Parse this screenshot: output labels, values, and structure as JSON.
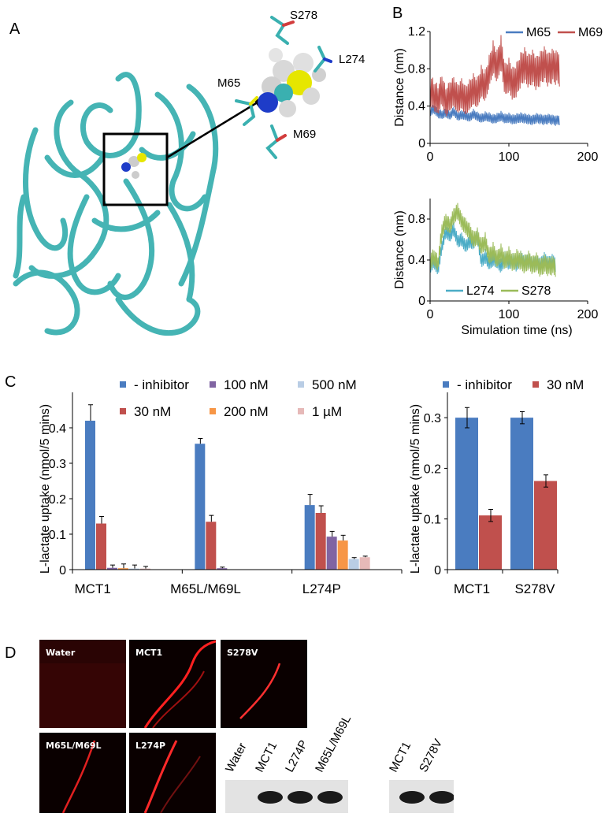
{
  "panels": {
    "a": "A",
    "b": "B",
    "c": "C",
    "d": "D"
  },
  "structure": {
    "residues": [
      "S278",
      "L274",
      "M65",
      "M69"
    ]
  },
  "colors": {
    "blue": "#4a7cc0",
    "red": "#c0504d",
    "purple": "#8064a2",
    "orange": "#f79646",
    "lightblue": "#b9cde5",
    "pink": "#e6b9b8",
    "cyan": "#4bacc6",
    "green": "#9bbb59",
    "protein": "#45b4b4"
  },
  "chart_data": [
    {
      "id": "B-top",
      "type": "line",
      "title": "",
      "xlabel": "",
      "ylabel": "Distance (nm)",
      "xlim": [
        0,
        200
      ],
      "ylim": [
        0,
        1.2
      ],
      "xticks": [
        "0",
        "100",
        "200"
      ],
      "yticks": [
        "0",
        "0.4",
        "0.8",
        "1.2"
      ],
      "legend_position": "top",
      "series": [
        {
          "name": "M65",
          "color": "#4a7cc0",
          "x": [
            0,
            5,
            10,
            15,
            20,
            25,
            30,
            35,
            40,
            45,
            50,
            55,
            60,
            65,
            70,
            75,
            80,
            85,
            90,
            95,
            100,
            105,
            110,
            115,
            120,
            125,
            130,
            135,
            140,
            145,
            150,
            155,
            160,
            165
          ],
          "y": [
            0.35,
            0.38,
            0.33,
            0.32,
            0.34,
            0.31,
            0.36,
            0.3,
            0.32,
            0.31,
            0.29,
            0.33,
            0.3,
            0.28,
            0.3,
            0.29,
            0.27,
            0.28,
            0.3,
            0.27,
            0.28,
            0.26,
            0.27,
            0.28,
            0.27,
            0.26,
            0.25,
            0.27,
            0.26,
            0.25,
            0.26,
            0.25,
            0.24,
            0.25
          ]
        },
        {
          "name": "M69",
          "color": "#c0504d",
          "x": [
            0,
            5,
            10,
            15,
            20,
            25,
            30,
            35,
            40,
            45,
            50,
            55,
            60,
            65,
            70,
            75,
            80,
            85,
            90,
            95,
            100,
            105,
            110,
            115,
            120,
            125,
            130,
            135,
            140,
            145,
            150,
            155,
            160,
            165
          ],
          "y": [
            0.6,
            0.55,
            0.5,
            0.62,
            0.48,
            0.55,
            0.6,
            0.52,
            0.58,
            0.5,
            0.56,
            0.62,
            0.58,
            0.7,
            0.65,
            0.8,
            0.95,
            0.85,
            1.0,
            0.7,
            0.75,
            0.65,
            0.7,
            0.8,
            0.85,
            0.78,
            0.82,
            0.75,
            0.8,
            0.85,
            0.78,
            0.82,
            0.8,
            0.78
          ]
        }
      ]
    },
    {
      "id": "B-bottom",
      "type": "line",
      "title": "",
      "xlabel": "Simulation time (ns)",
      "ylabel": "Distance (nm)",
      "xlim": [
        0,
        200
      ],
      "ylim": [
        0,
        1.0
      ],
      "xticks": [
        "0",
        "100",
        "200"
      ],
      "yticks": [
        "0",
        "0.4",
        "0.8"
      ],
      "legend_position": "bottom",
      "series": [
        {
          "name": "L274",
          "color": "#4bacc6",
          "x": [
            0,
            5,
            10,
            15,
            20,
            25,
            30,
            35,
            40,
            45,
            50,
            55,
            60,
            65,
            70,
            75,
            80,
            85,
            90,
            95,
            100,
            105,
            110,
            115,
            120,
            125,
            130,
            135,
            140,
            145,
            150,
            155,
            160
          ],
          "y": [
            0.35,
            0.4,
            0.32,
            0.55,
            0.7,
            0.65,
            0.72,
            0.6,
            0.62,
            0.55,
            0.6,
            0.58,
            0.65,
            0.4,
            0.45,
            0.38,
            0.42,
            0.4,
            0.35,
            0.42,
            0.38,
            0.4,
            0.36,
            0.42,
            0.38,
            0.4,
            0.36,
            0.38,
            0.35,
            0.4,
            0.36,
            0.38,
            0.35
          ]
        },
        {
          "name": "S278",
          "color": "#9bbb59",
          "x": [
            0,
            5,
            10,
            15,
            20,
            25,
            30,
            35,
            40,
            45,
            50,
            55,
            60,
            65,
            70,
            75,
            80,
            85,
            90,
            95,
            100,
            105,
            110,
            115,
            120,
            125,
            130,
            135,
            140,
            145,
            150,
            155,
            160
          ],
          "y": [
            0.4,
            0.45,
            0.38,
            0.7,
            0.8,
            0.75,
            0.85,
            0.9,
            0.8,
            0.75,
            0.7,
            0.62,
            0.65,
            0.55,
            0.6,
            0.45,
            0.5,
            0.42,
            0.48,
            0.4,
            0.45,
            0.38,
            0.42,
            0.4,
            0.36,
            0.4,
            0.35,
            0.38,
            0.32,
            0.36,
            0.33,
            0.34,
            0.32
          ]
        }
      ]
    },
    {
      "id": "C-left",
      "type": "bar",
      "title": "",
      "xlabel": "",
      "ylabel": "L-lactate uptake (nmol/5 mins)",
      "ylim": [
        0,
        0.5
      ],
      "yticks": [
        "0",
        "0.1",
        "0.2",
        "0.3",
        "0.4"
      ],
      "categories": [
        "MCT1",
        "M65L/M69L",
        "L274P"
      ],
      "legend_position": "top",
      "series": [
        {
          "name": "- inhibitor",
          "color": "#4a7cc0",
          "values": [
            0.42,
            0.355,
            0.182
          ],
          "errors": [
            0.045,
            0.015,
            0.03
          ]
        },
        {
          "name": "30 nM",
          "color": "#c0504d",
          "values": [
            0.13,
            0.135,
            0.16
          ],
          "errors": [
            0.02,
            0.018,
            0.02
          ]
        },
        {
          "name": "100 nM",
          "color": "#8064a2",
          "values": [
            0.005,
            0.004,
            0.093
          ],
          "errors": [
            0.008,
            0.003,
            0.015
          ]
        },
        {
          "name": "200 nM",
          "color": "#f79646",
          "values": [
            0.004,
            0,
            0.082
          ],
          "errors": [
            0.012,
            0,
            0.015
          ]
        },
        {
          "name": "500 nM",
          "color": "#b9cde5",
          "values": [
            0.003,
            0,
            0.03
          ],
          "errors": [
            0.01,
            0,
            0.004
          ]
        },
        {
          "name": "1 µM",
          "color": "#e6b9b8",
          "values": [
            0.003,
            0,
            0.035
          ],
          "errors": [
            0.006,
            0,
            0.003
          ]
        }
      ]
    },
    {
      "id": "C-right",
      "type": "bar",
      "title": "",
      "xlabel": "",
      "ylabel": "L-lactate uptake (nmol/5 mins)",
      "ylim": [
        0,
        0.35
      ],
      "yticks": [
        "0",
        "0.1",
        "0.2",
        "0.3"
      ],
      "categories": [
        "MCT1",
        "S278V"
      ],
      "legend_position": "top",
      "series": [
        {
          "name": "- inhibitor",
          "color": "#4a7cc0",
          "values": [
            0.3,
            0.3
          ],
          "errors": [
            0.02,
            0.012
          ]
        },
        {
          "name": "30 nM",
          "color": "#c0504d",
          "values": [
            0.107,
            0.175
          ],
          "errors": [
            0.012,
            0.012
          ]
        }
      ]
    }
  ],
  "micrographs": [
    {
      "label": "Water"
    },
    {
      "label": "MCT1"
    },
    {
      "label": "S278V"
    },
    {
      "label": "M65L/M69L"
    },
    {
      "label": "L274P"
    }
  ],
  "blots": [
    {
      "lanes": [
        "Water",
        "MCT1",
        "L274P",
        "M65L/M69L"
      ],
      "bands": [
        0,
        1,
        1,
        1
      ]
    },
    {
      "lanes": [
        "MCT1",
        "S278V"
      ],
      "bands": [
        1,
        1
      ]
    }
  ]
}
